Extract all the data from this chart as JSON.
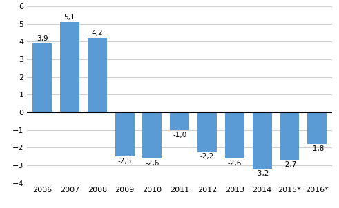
{
  "categories": [
    "2006",
    "2007",
    "2008",
    "2009",
    "2010",
    "2011",
    "2012",
    "2013",
    "2014",
    "2015*",
    "2016*"
  ],
  "values": [
    3.9,
    5.1,
    4.2,
    -2.5,
    -2.6,
    -1.0,
    -2.2,
    -2.6,
    -3.2,
    -2.7,
    -1.8
  ],
  "labels": [
    "3,9",
    "5,1",
    "4,2",
    "-2,5",
    "-2,6",
    "-1,0",
    "-2,2",
    "-2,6",
    "-3,2",
    "-2,7",
    "-1,8"
  ],
  "bar_color": "#5b9bd5",
  "ylim": [
    -4,
    6
  ],
  "yticks": [
    -4,
    -3,
    -2,
    -1,
    0,
    1,
    2,
    3,
    4,
    5,
    6
  ],
  "background_color": "#ffffff",
  "grid_color": "#d0d0d0",
  "zero_line_color": "#000000",
  "label_fontsize": 7.5,
  "tick_fontsize": 8,
  "bar_width": 0.7
}
